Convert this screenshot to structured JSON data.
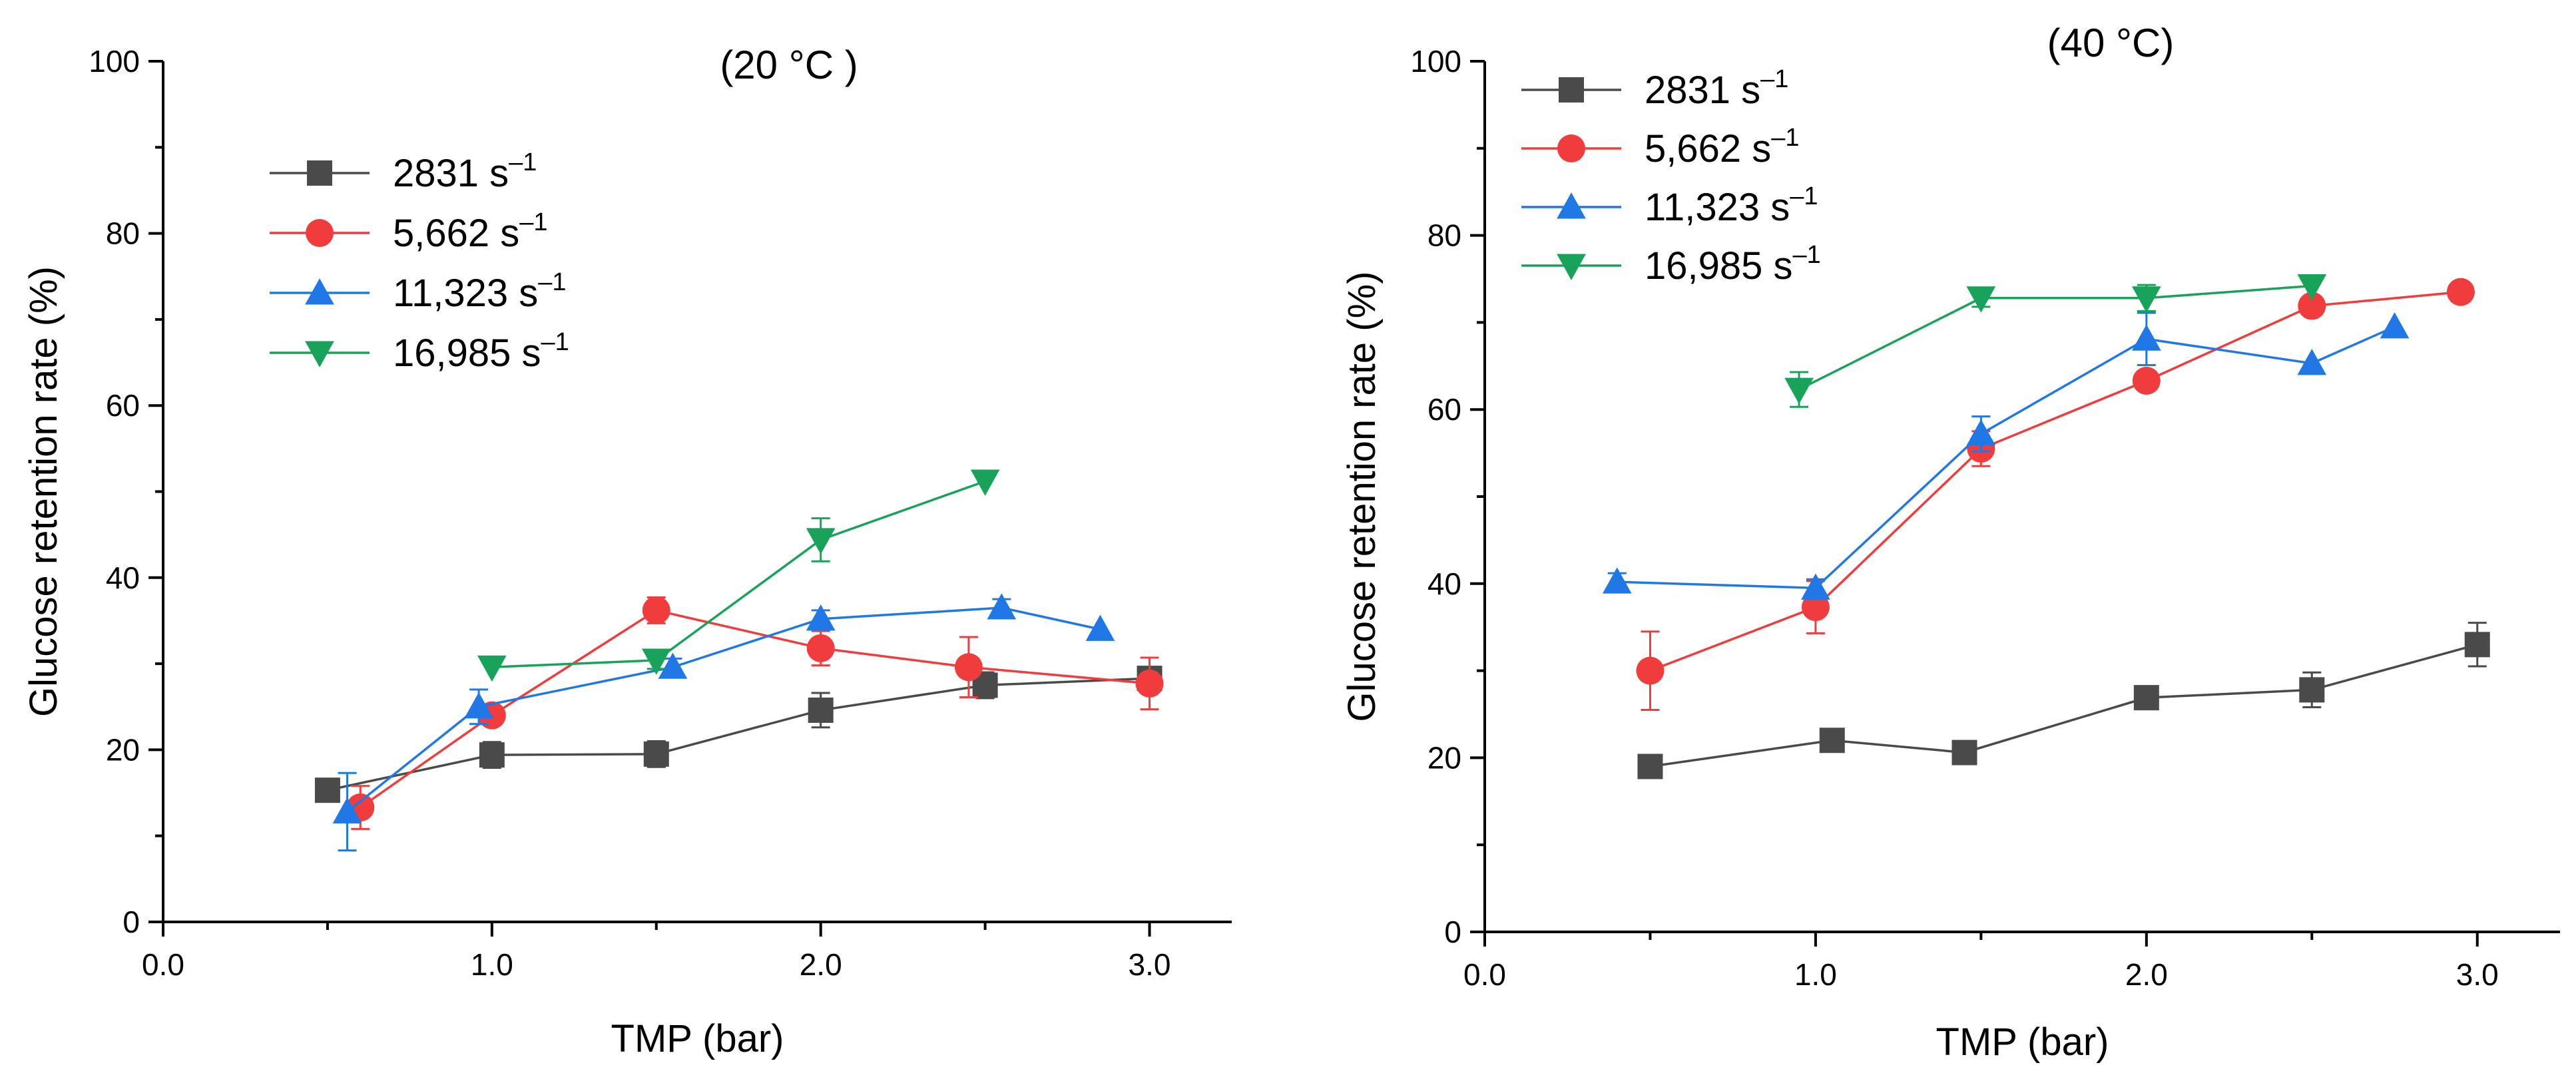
{
  "chart_data": [
    {
      "type": "line",
      "title": "(20 °C )",
      "xlabel": "TMP (bar)",
      "ylabel": "Glucose retention rate (%)",
      "xlim": [
        0.0,
        3.25
      ],
      "ylim": [
        0,
        100
      ],
      "xticks": [
        "0.0",
        "1.0",
        "2.0",
        "3.0"
      ],
      "yticks": [
        "0",
        "20",
        "40",
        "60",
        "80",
        "100"
      ],
      "legend_position": "upper-left",
      "series": [
        {
          "name": "2831 s",
          "sup": "–1",
          "marker": "square",
          "color": "#4a4a4a",
          "x": [
            0.5,
            1.0,
            1.5,
            2.0,
            2.5,
            3.0
          ],
          "y": [
            15.3,
            19.4,
            19.5,
            24.6,
            27.5,
            28.3
          ],
          "err": [
            0.5,
            1.5,
            1.5,
            2.0,
            1.5,
            0.5
          ]
        },
        {
          "name": "5,662 s",
          "sup": "–1",
          "marker": "circle",
          "color": "#f03c3c",
          "x": [
            0.6,
            1.0,
            1.5,
            2.0,
            2.45,
            3.0
          ],
          "y": [
            13.3,
            24.0,
            36.2,
            31.8,
            29.6,
            27.7
          ],
          "err": [
            2.5,
            1.0,
            1.5,
            2.0,
            3.5,
            3.0
          ]
        },
        {
          "name": "11,323 s",
          "sup": "–1",
          "marker": "triangle-up",
          "color": "#1f78e6",
          "x": [
            0.56,
            0.96,
            1.55,
            2.0,
            2.55,
            2.85
          ],
          "y": [
            12.8,
            25.0,
            29.6,
            35.2,
            36.5,
            34.0
          ],
          "err": [
            4.5,
            2.0,
            1.0,
            1.0,
            1.0,
            0.5
          ]
        },
        {
          "name": "16,985 s",
          "sup": "–1",
          "marker": "triangle-down",
          "color": "#19a35a",
          "x": [
            1.0,
            1.5,
            2.0,
            2.5
          ],
          "y": [
            29.6,
            30.4,
            44.4,
            51.2
          ],
          "err": [
            0.5,
            1.0,
            2.5,
            0.5
          ]
        }
      ]
    },
    {
      "type": "line",
      "title": "(40 °C)",
      "xlabel": "TMP (bar)",
      "ylabel": "Glucose retention rate (%)",
      "xlim": [
        0.0,
        3.25
      ],
      "ylim": [
        0,
        100
      ],
      "xticks": [
        "0.0",
        "1.0",
        "2.0",
        "3.0"
      ],
      "yticks": [
        "0",
        "20",
        "40",
        "60",
        "80",
        "100"
      ],
      "legend_position": "upper-left",
      "series": [
        {
          "name": "2831 s",
          "sup": "–1",
          "marker": "square",
          "color": "#4a4a4a",
          "x": [
            0.5,
            1.05,
            1.45,
            2.0,
            2.5,
            3.0
          ],
          "y": [
            19.0,
            22.0,
            20.6,
            26.9,
            27.8,
            33.0
          ],
          "err": [
            1.0,
            0.5,
            0.5,
            0.5,
            2.0,
            2.5
          ]
        },
        {
          "name": "5,662 s",
          "sup": "–1",
          "marker": "circle",
          "color": "#f03c3c",
          "x": [
            0.5,
            1.0,
            1.5,
            2.0,
            2.5,
            2.95
          ],
          "y": [
            30.0,
            37.3,
            55.5,
            63.3,
            71.9,
            73.5
          ],
          "err": [
            4.5,
            3.0,
            2.0,
            0.5,
            1.0,
            0.5
          ]
        },
        {
          "name": "11,323 s",
          "sup": "–1",
          "marker": "triangle-up",
          "color": "#1f78e6",
          "x": [
            0.4,
            1.0,
            1.5,
            2.0,
            2.5,
            2.75
          ],
          "y": [
            40.2,
            39.5,
            57.2,
            68.1,
            65.3,
            69.5
          ],
          "err": [
            1.0,
            1.0,
            2.0,
            3.0,
            0.5,
            0.5
          ]
        },
        {
          "name": "16,985 s",
          "sup": "–1",
          "marker": "triangle-down",
          "color": "#19a35a",
          "x": [
            0.95,
            1.5,
            2.0,
            2.5
          ],
          "y": [
            62.3,
            72.8,
            72.8,
            74.2
          ],
          "err": [
            2.0,
            1.0,
            1.5,
            0.5
          ]
        }
      ]
    }
  ]
}
